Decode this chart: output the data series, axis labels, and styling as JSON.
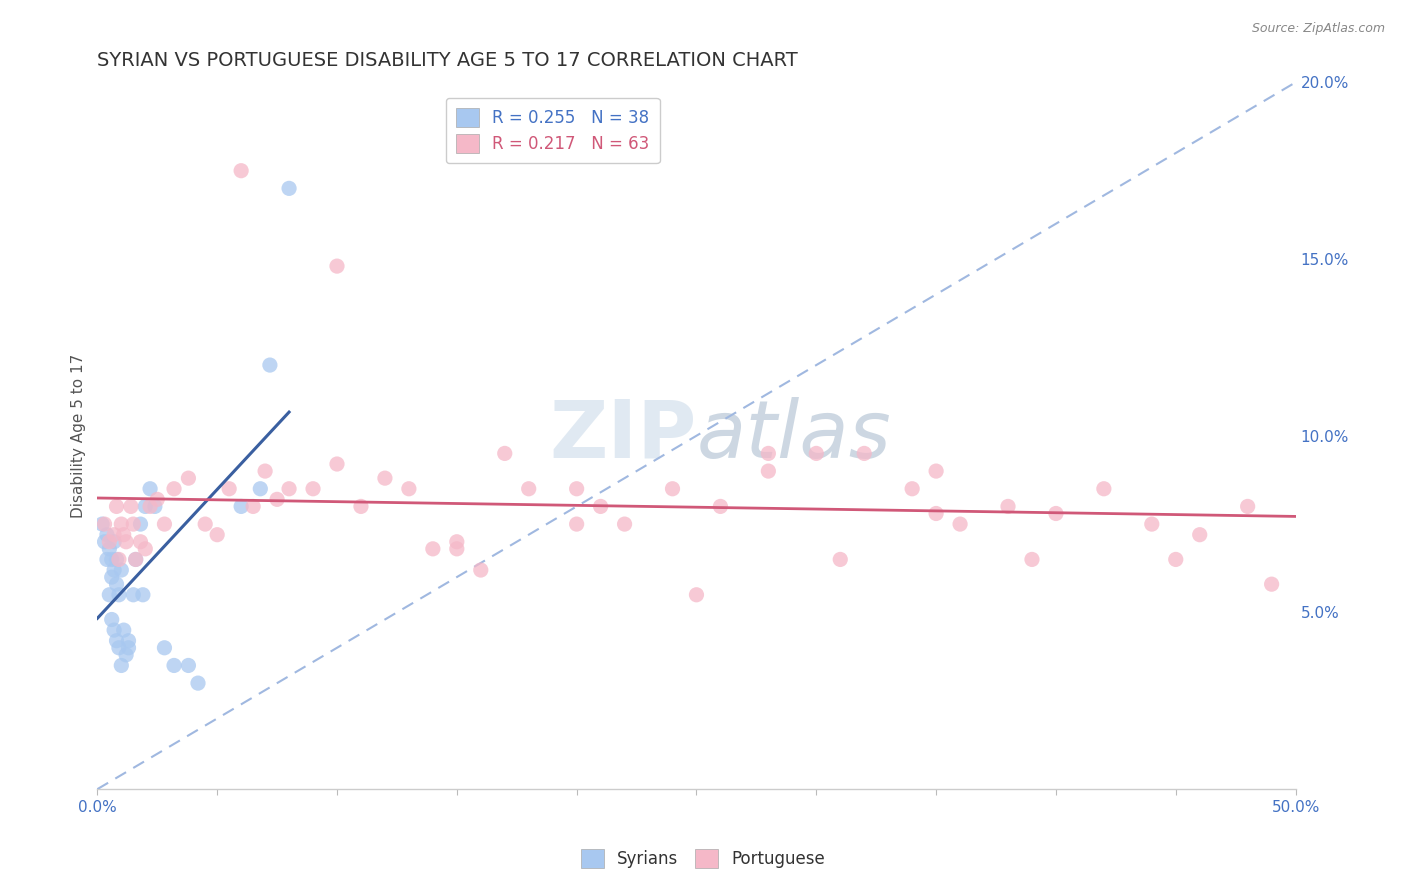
{
  "title": "SYRIAN VS PORTUGUESE DISABILITY AGE 5 TO 17 CORRELATION CHART",
  "source": "Source: ZipAtlas.com",
  "ylabel": "Disability Age 5 to 17",
  "xlim": [
    0.0,
    0.5
  ],
  "ylim": [
    0.0,
    0.2
  ],
  "yticks_right": [
    0.05,
    0.1,
    0.15,
    0.2
  ],
  "ytick_labels_right": [
    "5.0%",
    "10.0%",
    "15.0%",
    "20.0%"
  ],
  "syrian_color": "#a8c8f0",
  "portuguese_color": "#f5b8c8",
  "syrian_line_color": "#3a5fa0",
  "portuguese_line_color": "#d05878",
  "diagonal_color": "#a0b8e0",
  "legend_R_syrian": "R = 0.255",
  "legend_N_syrian": "N = 38",
  "legend_R_portuguese": "R = 0.217",
  "legend_N_portuguese": "N = 63",
  "syrian_N": 38,
  "portuguese_N": 63,
  "syrians_x": [
    0.002,
    0.003,
    0.004,
    0.004,
    0.005,
    0.005,
    0.006,
    0.006,
    0.006,
    0.007,
    0.007,
    0.007,
    0.008,
    0.008,
    0.008,
    0.009,
    0.009,
    0.01,
    0.01,
    0.011,
    0.012,
    0.013,
    0.013,
    0.015,
    0.016,
    0.018,
    0.019,
    0.02,
    0.022,
    0.024,
    0.028,
    0.032,
    0.038,
    0.042,
    0.06,
    0.068,
    0.072,
    0.08
  ],
  "syrians_y": [
    0.075,
    0.07,
    0.072,
    0.065,
    0.068,
    0.055,
    0.06,
    0.065,
    0.048,
    0.07,
    0.062,
    0.045,
    0.065,
    0.058,
    0.042,
    0.055,
    0.04,
    0.062,
    0.035,
    0.045,
    0.038,
    0.042,
    0.04,
    0.055,
    0.065,
    0.075,
    0.055,
    0.08,
    0.085,
    0.08,
    0.04,
    0.035,
    0.035,
    0.03,
    0.08,
    0.085,
    0.12,
    0.17
  ],
  "portuguese_x": [
    0.003,
    0.005,
    0.007,
    0.008,
    0.009,
    0.01,
    0.011,
    0.012,
    0.014,
    0.015,
    0.016,
    0.018,
    0.02,
    0.022,
    0.025,
    0.028,
    0.032,
    0.038,
    0.045,
    0.05,
    0.055,
    0.06,
    0.065,
    0.07,
    0.075,
    0.08,
    0.09,
    0.1,
    0.11,
    0.12,
    0.13,
    0.14,
    0.15,
    0.16,
    0.17,
    0.18,
    0.2,
    0.21,
    0.22,
    0.24,
    0.26,
    0.28,
    0.3,
    0.31,
    0.32,
    0.34,
    0.35,
    0.36,
    0.38,
    0.39,
    0.4,
    0.42,
    0.44,
    0.45,
    0.46,
    0.48,
    0.49,
    0.1,
    0.15,
    0.2,
    0.25,
    0.28,
    0.35
  ],
  "portuguese_y": [
    0.075,
    0.07,
    0.072,
    0.08,
    0.065,
    0.075,
    0.072,
    0.07,
    0.08,
    0.075,
    0.065,
    0.07,
    0.068,
    0.08,
    0.082,
    0.075,
    0.085,
    0.088,
    0.075,
    0.072,
    0.085,
    0.175,
    0.08,
    0.09,
    0.082,
    0.085,
    0.085,
    0.092,
    0.08,
    0.088,
    0.085,
    0.068,
    0.07,
    0.062,
    0.095,
    0.085,
    0.075,
    0.08,
    0.075,
    0.085,
    0.08,
    0.09,
    0.095,
    0.065,
    0.095,
    0.085,
    0.09,
    0.075,
    0.08,
    0.065,
    0.078,
    0.085,
    0.075,
    0.065,
    0.072,
    0.08,
    0.058,
    0.148,
    0.068,
    0.085,
    0.055,
    0.095,
    0.078
  ],
  "background_color": "#ffffff",
  "grid_color": "#e8e8e8",
  "title_fontsize": 14,
  "label_fontsize": 11,
  "tick_fontsize": 11,
  "axis_color": "#4472c4",
  "watermark_color": "#d0dce8",
  "watermark_alpha": 0.6
}
